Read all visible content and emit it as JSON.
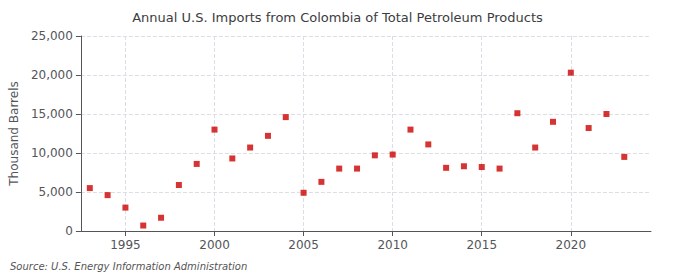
{
  "chart_data": {
    "type": "scatter",
    "title": "Annual U.S. Imports from Colombia of Total Petroleum Products",
    "ylabel": "Thousand Barrels",
    "annotations": [
      "Source: U.S. Energy Information Administration"
    ],
    "x": [
      1993,
      1994,
      1995,
      1996,
      1997,
      1998,
      1999,
      2000,
      2001,
      2002,
      2003,
      2004,
      2005,
      2006,
      2007,
      2008,
      2009,
      2010,
      2011,
      2012,
      2013,
      2014,
      2015,
      2016,
      2017,
      2018,
      2019,
      2020,
      2021,
      2022,
      2023
    ],
    "values": [
      5500,
      4600,
      3000,
      700,
      1700,
      5900,
      8600,
      13000,
      9300,
      10700,
      12200,
      14600,
      4900,
      6300,
      8000,
      8000,
      9700,
      9800,
      13000,
      11100,
      8100,
      8300,
      8200,
      8000,
      15100,
      10700,
      14000,
      20300,
      13200,
      15000,
      9500
    ],
    "color": "#cc0000",
    "marker": "square",
    "xlim": [
      1992.5,
      2024.5
    ],
    "xticks": [
      1995,
      2000,
      2005,
      2010,
      2015,
      2020
    ],
    "ylim": [
      0,
      25000
    ],
    "yticks": [
      0,
      {
        "value": 5000,
        "label": "5,000"
      },
      {
        "value": 10000,
        "label": "10,000"
      },
      {
        "value": 15000,
        "label": "15,000"
      },
      {
        "value": 20000,
        "label": "20,000"
      },
      {
        "value": 25000,
        "label": "25,000"
      }
    ],
    "grid": true
  }
}
